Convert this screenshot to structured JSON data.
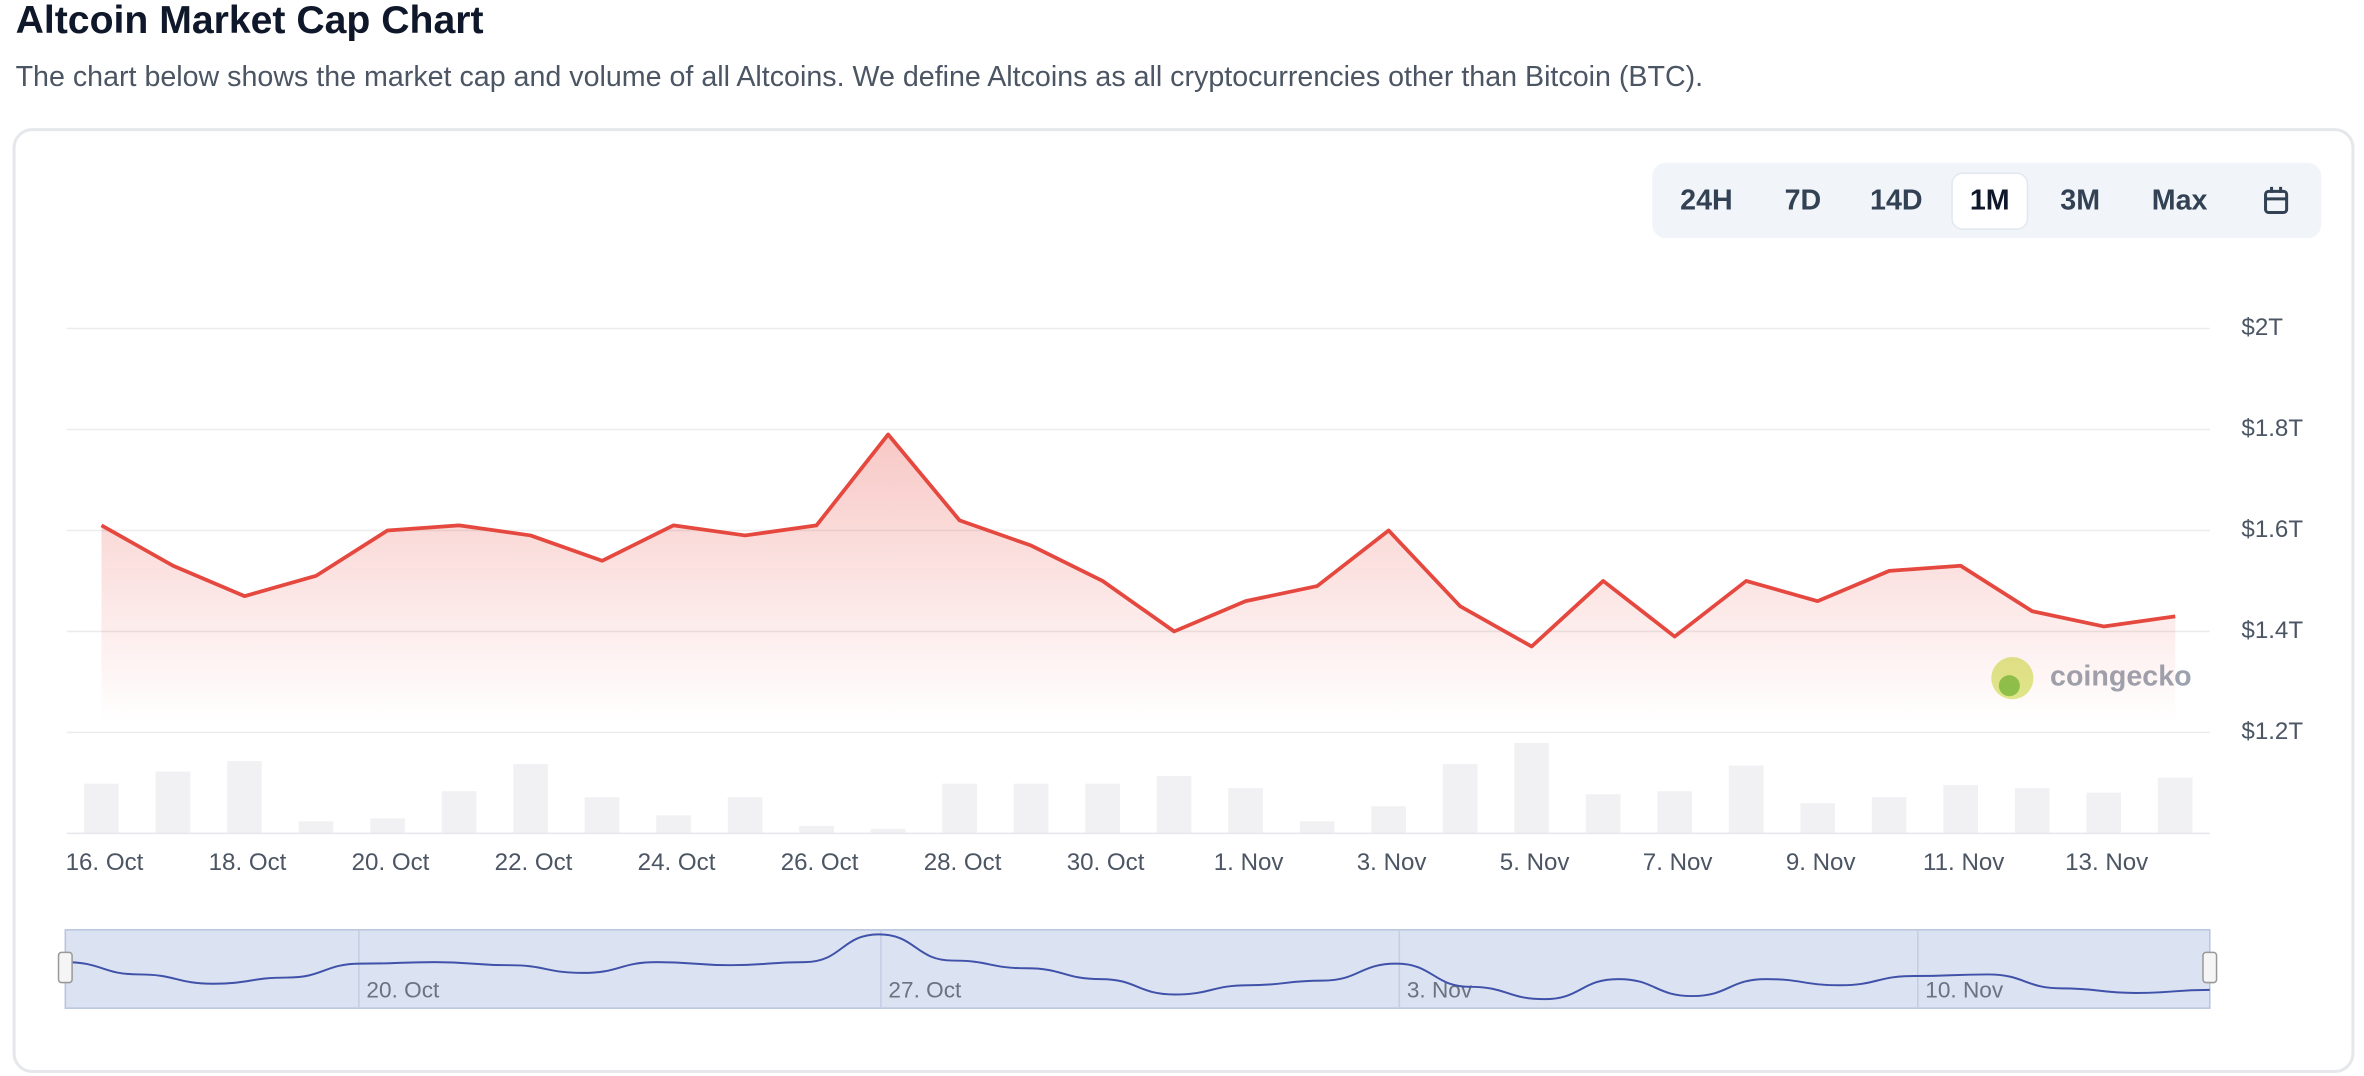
{
  "chart_data": {
    "type": "line",
    "title": "Altcoin Market Cap Chart",
    "subtitle": "The chart below shows the market cap and volume of all Altcoins. We define Altcoins as all cryptocurrencies other than Bitcoin (BTC).",
    "categories": [
      "16. Oct",
      null,
      "18. Oct",
      null,
      "20. Oct",
      null,
      "22. Oct",
      null,
      "24. Oct",
      null,
      "26. Oct",
      null,
      "28. Oct",
      null,
      "30. Oct",
      null,
      "1. Nov",
      null,
      "3. Nov",
      null,
      "5. Nov",
      null,
      "7. Nov",
      null,
      "9. Nov",
      null,
      "11. Nov",
      null,
      "13. Nov",
      null
    ],
    "series": [
      {
        "color": "#e5483f",
        "values": [
          1.61,
          1.53,
          1.47,
          1.51,
          1.6,
          1.61,
          1.59,
          1.54,
          1.61,
          1.59,
          1.61,
          1.79,
          1.62,
          1.57,
          1.5,
          1.4,
          1.46,
          1.49,
          1.6,
          1.45,
          1.37,
          1.5,
          1.39,
          1.5,
          1.46,
          1.52,
          1.53,
          1.44,
          1.41,
          1.43
        ]
      },
      {
        "type": "bar",
        "axis": "y2",
        "color": "#f1f1f3",
        "values": [
          33,
          41,
          48,
          8,
          10,
          28,
          46,
          24,
          12,
          24,
          5,
          3,
          33,
          33,
          33,
          38,
          30,
          8,
          18,
          46,
          60,
          26,
          28,
          45,
          20,
          24,
          32,
          30,
          27,
          37
        ]
      }
    ],
    "ylim": [
      1,
      2
    ],
    "yticks": [
      {
        "value": 2,
        "label": "$2T"
      },
      {
        "value": 1.8,
        "label": "$1.8T"
      },
      {
        "value": 1.6,
        "label": "$1.6T"
      },
      {
        "value": 1.4,
        "label": "$1.4T"
      },
      {
        "value": 1.2,
        "label": "$1.2T"
      }
    ],
    "y2lim": [
      0,
      65
    ],
    "grid": true
  },
  "controls": {
    "ranges": [
      "24H",
      "7D",
      "14D",
      "1M",
      "3M",
      "Max"
    ],
    "active": 3
  },
  "watermark": "coingecko",
  "navigator": {
    "labels": [
      "20. Oct",
      "27. Oct",
      "3. Nov",
      "10. Nov"
    ]
  }
}
